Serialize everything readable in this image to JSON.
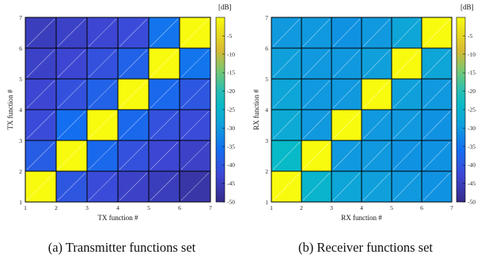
{
  "chart_data": [
    {
      "type": "heatmap",
      "caption": "(a) Transmitter functions set",
      "xlabel": "TX function #",
      "ylabel": "TX function #",
      "x_ticks": [
        "1",
        "2",
        "3",
        "4",
        "5",
        "6",
        "7"
      ],
      "y_ticks": [
        "1",
        "2",
        "3",
        "4",
        "5",
        "6",
        "7"
      ],
      "xlim": [
        1,
        7
      ],
      "ylim": [
        1,
        7
      ],
      "colorbar": {
        "unit": "[dB]",
        "range": [
          -50,
          0
        ],
        "ticks": [
          "-5",
          "-10",
          "-15",
          "-20",
          "-25",
          "-30",
          "-35",
          "-40",
          "-45",
          "-50"
        ]
      },
      "note": "rows ordered bottom (y=1) to top (y=6); columns x=1..6",
      "values": [
        [
          0,
          -40,
          -42,
          -44,
          -45,
          -47
        ],
        [
          -39,
          0,
          -37,
          -41,
          -43,
          -44
        ],
        [
          -42,
          -36,
          0,
          -37,
          -41,
          -42
        ],
        [
          -43,
          -41,
          -38,
          0,
          -37,
          -40
        ],
        [
          -44,
          -43,
          -41,
          -38,
          0,
          -35
        ],
        [
          -45,
          -44,
          -43,
          -42,
          -35,
          0
        ]
      ]
    },
    {
      "type": "heatmap",
      "caption": "(b) Receiver functions set",
      "xlabel": "RX function #",
      "ylabel": "RX function #",
      "x_ticks": [
        "1",
        "2",
        "3",
        "4",
        "5",
        "6",
        "7"
      ],
      "y_ticks": [
        "1",
        "2",
        "3",
        "4",
        "5",
        "6",
        "7"
      ],
      "xlim": [
        1,
        7
      ],
      "ylim": [
        1,
        7
      ],
      "colorbar": {
        "unit": "[dB]",
        "range": [
          -50,
          0
        ],
        "ticks": [
          "-5",
          "-10",
          "-15",
          "-20",
          "-25",
          "-30",
          "-35",
          "-40",
          "-45",
          "-50"
        ]
      },
      "note": "rows ordered bottom (y=1) to top (y=6); columns x=1..6",
      "values": [
        [
          0,
          -25,
          -28,
          -29,
          -30,
          -31
        ],
        [
          -24,
          0,
          -30,
          -30,
          -31,
          -31
        ],
        [
          -27,
          -30,
          0,
          -30,
          -30,
          -31
        ],
        [
          -28,
          -30,
          -30,
          0,
          -29,
          -30
        ],
        [
          -29,
          -30,
          -30,
          -29,
          0,
          -28
        ],
        [
          -30,
          -30,
          -31,
          -30,
          -28,
          0
        ]
      ]
    }
  ]
}
